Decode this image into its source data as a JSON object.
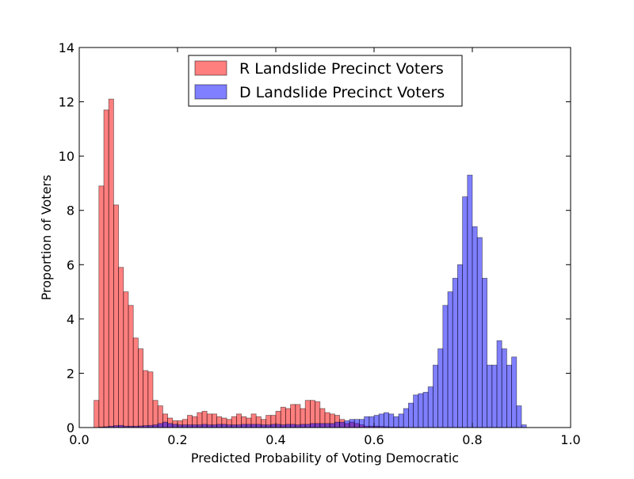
{
  "chart_data": {
    "type": "bar",
    "subtype": "overlapping-histogram",
    "title": "",
    "xlabel": "Predicted Probability of Voting Democratic",
    "ylabel": "Proportion of Voters",
    "xlim": [
      0.0,
      1.0
    ],
    "ylim": [
      0,
      14
    ],
    "xticks": [
      0.0,
      0.2,
      0.4,
      0.6,
      0.8,
      1.0
    ],
    "xtick_labels": [
      "0.0",
      "0.2",
      "0.4",
      "0.6",
      "0.8",
      "1.0"
    ],
    "yticks": [
      0,
      2,
      4,
      6,
      8,
      10,
      12,
      14
    ],
    "ytick_labels": [
      "0",
      "2",
      "4",
      "6",
      "8",
      "10",
      "12",
      "14"
    ],
    "grid": false,
    "legend_position": "top-center",
    "bin_width": 0.01,
    "series": [
      {
        "name": "R Landslide Precinct Voters",
        "color": "#ff0000",
        "alpha": 0.5,
        "bin_start": 0.03,
        "values": [
          1.0,
          8.9,
          11.7,
          12.1,
          8.2,
          5.9,
          5.0,
          4.5,
          3.3,
          2.9,
          2.1,
          2.05,
          1.0,
          0.8,
          0.5,
          0.35,
          0.25,
          0.25,
          0.3,
          0.45,
          0.4,
          0.55,
          0.6,
          0.5,
          0.5,
          0.4,
          0.35,
          0.3,
          0.4,
          0.5,
          0.4,
          0.35,
          0.5,
          0.4,
          0.3,
          0.45,
          0.45,
          0.6,
          0.75,
          0.7,
          0.85,
          0.85,
          0.7,
          1.0,
          1.0,
          0.95,
          0.7,
          0.55,
          0.5,
          0.45,
          0.3,
          0.15,
          0.2,
          0.15,
          0.1,
          0.05,
          0.05,
          0.05,
          0.04,
          0.03,
          0.02,
          0.02,
          0.02,
          0.01
        ]
      },
      {
        "name": "D Landslide Precinct Voters",
        "color": "#0000ff",
        "alpha": 0.5,
        "bin_start": 0.04,
        "values": [
          0.02,
          0.03,
          0.05,
          0.07,
          0.08,
          0.05,
          0.05,
          0.05,
          0.06,
          0.07,
          0.08,
          0.1,
          0.15,
          0.2,
          0.15,
          0.12,
          0.1,
          0.1,
          0.1,
          0.1,
          0.1,
          0.12,
          0.1,
          0.1,
          0.12,
          0.12,
          0.1,
          0.1,
          0.1,
          0.12,
          0.12,
          0.12,
          0.12,
          0.1,
          0.1,
          0.12,
          0.12,
          0.1,
          0.12,
          0.12,
          0.1,
          0.12,
          0.12,
          0.15,
          0.15,
          0.15,
          0.15,
          0.15,
          0.2,
          0.2,
          0.25,
          0.3,
          0.3,
          0.3,
          0.4,
          0.4,
          0.45,
          0.5,
          0.55,
          0.5,
          0.4,
          0.5,
          0.7,
          0.9,
          1.2,
          1.25,
          1.3,
          1.5,
          2.3,
          2.9,
          4.5,
          5.0,
          5.5,
          6.0,
          8.5,
          9.3,
          7.4,
          7.0,
          5.5,
          2.3,
          2.3,
          3.2,
          2.9,
          2.3,
          2.6,
          0.8,
          0.1
        ]
      }
    ]
  }
}
